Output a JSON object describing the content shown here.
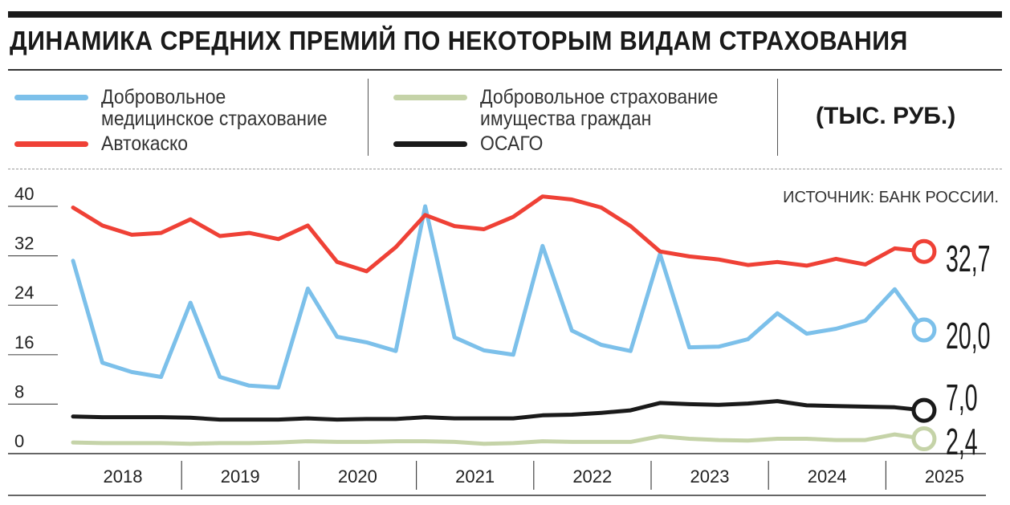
{
  "title": "ДИНАМИКА СРЕДНИХ ПРЕМИЙ ПО НЕКОТОРЫМ ВИДАМ СТРАХОВАНИЯ",
  "units": "(ТЫС. РУБ.)",
  "source": "ИСТОЧНИК: БАНК РОССИИ.",
  "legend": [
    {
      "line1": "Добровольное",
      "line2": "медицинское страхование",
      "color": "#7cc0ea"
    },
    {
      "line1": "Автокаско",
      "color": "#ef4136"
    },
    {
      "line1": "Добровольное страхование",
      "line2": "имущества граждан",
      "color": "#c5d3a8"
    },
    {
      "line1": "ОСАГО",
      "color": "#1a1a1a"
    }
  ],
  "chart_data": {
    "type": "line",
    "title": "ДИНАМИКА СРЕДНИХ ПРЕМИЙ ПО НЕКОТОРЫМ ВИДАМ СТРАХОВАНИЯ",
    "ylabel": "тыс. руб.",
    "ylim": [
      0,
      40
    ],
    "yticks": [
      "40",
      "32",
      "24",
      "16",
      "8",
      "0"
    ],
    "ytick_values": [
      40,
      32,
      24,
      16,
      8,
      0
    ],
    "years": [
      "2018",
      "2019",
      "2020",
      "2021",
      "2022",
      "2023",
      "2024",
      "2025"
    ],
    "x": [
      "2018Q1",
      "2018Q2",
      "2018Q3",
      "2018Q4",
      "2019Q1",
      "2019Q2",
      "2019Q3",
      "2019Q4",
      "2020Q1",
      "2020Q2",
      "2020Q3",
      "2020Q4",
      "2021Q1",
      "2021Q2",
      "2021Q3",
      "2021Q4",
      "2022Q1",
      "2022Q2",
      "2022Q3",
      "2022Q4",
      "2023Q1",
      "2023Q2",
      "2023Q3",
      "2023Q4",
      "2024Q1",
      "2024Q2",
      "2024Q3",
      "2024Q4",
      "2025Q1",
      "2025Q2"
    ],
    "series": [
      {
        "name": "Автокаско",
        "color": "#ef4136",
        "end_label": "32,7",
        "values": [
          39.8,
          36.9,
          35.4,
          35.7,
          37.9,
          35.2,
          35.7,
          34.7,
          36.9,
          31.0,
          29.5,
          33.4,
          38.6,
          36.8,
          36.3,
          38.3,
          41.6,
          41.1,
          39.8,
          36.8,
          32.7,
          31.9,
          31.4,
          30.5,
          31.0,
          30.4,
          31.5,
          30.6,
          33.2,
          32.7
        ]
      },
      {
        "name": "Добровольное медицинское страхование",
        "color": "#7cc0ea",
        "end_label": "20,0",
        "values": [
          31.2,
          14.7,
          13.2,
          12.4,
          24.4,
          12.4,
          11.0,
          10.7,
          26.7,
          18.9,
          18.0,
          16.6,
          40.0,
          18.8,
          16.7,
          16.0,
          33.6,
          19.9,
          17.6,
          16.6,
          32.3,
          17.2,
          17.3,
          18.5,
          22.7,
          19.4,
          20.2,
          21.5,
          26.6,
          20.0
        ]
      },
      {
        "name": "ОСАГО",
        "color": "#1a1a1a",
        "end_label": "7,0",
        "values": [
          6.0,
          5.9,
          5.9,
          5.9,
          5.8,
          5.5,
          5.5,
          5.5,
          5.7,
          5.5,
          5.6,
          5.6,
          5.9,
          5.7,
          5.7,
          5.7,
          6.2,
          6.3,
          6.6,
          7.0,
          8.2,
          8.0,
          7.9,
          8.1,
          8.5,
          7.8,
          7.7,
          7.6,
          7.5,
          7.0
        ]
      },
      {
        "name": "Добровольное страхование имущества граждан",
        "color": "#c5d3a8",
        "end_label": "2,4",
        "values": [
          1.8,
          1.7,
          1.7,
          1.7,
          1.6,
          1.7,
          1.7,
          1.8,
          2.0,
          1.9,
          1.9,
          2.0,
          2.0,
          1.9,
          1.6,
          1.7,
          2.0,
          1.9,
          1.9,
          1.9,
          2.8,
          2.4,
          2.2,
          2.1,
          2.4,
          2.4,
          2.2,
          2.2,
          3.1,
          2.4
        ]
      }
    ]
  }
}
